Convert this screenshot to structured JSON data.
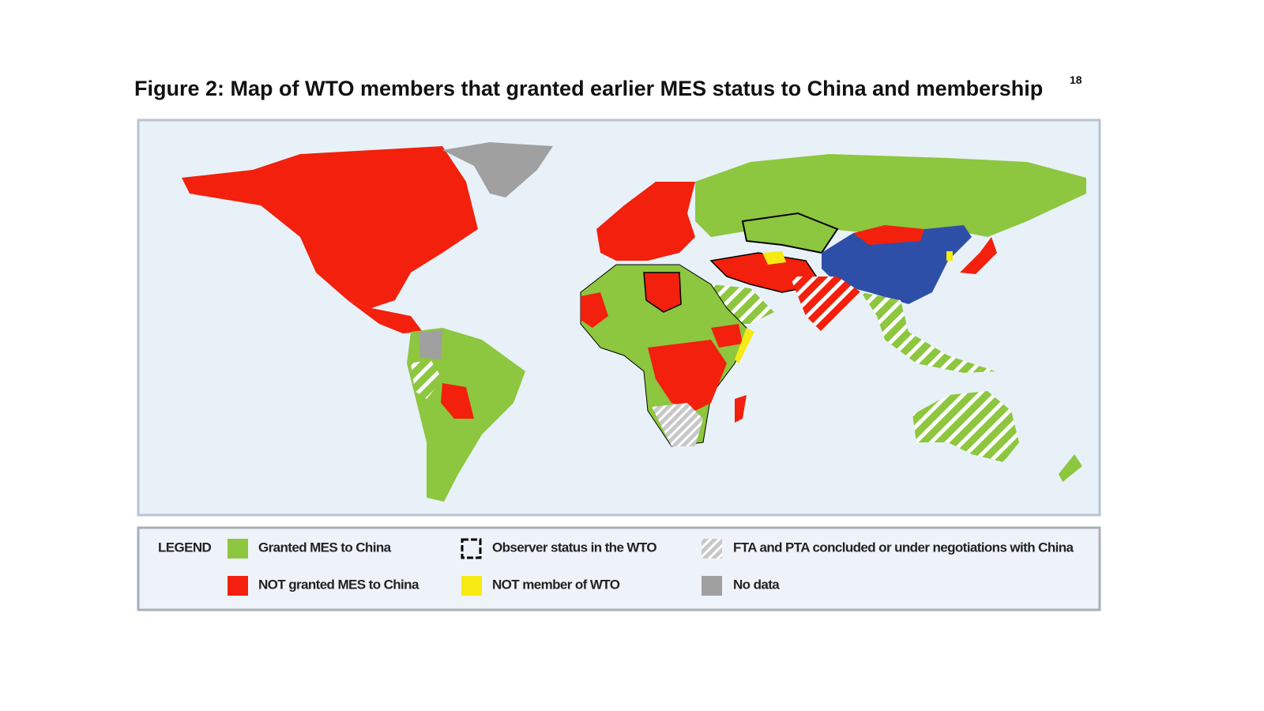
{
  "header": {
    "title": "Figure 2: Map of WTO members that granted earlier MES status to China and membership",
    "footnote": "18"
  },
  "legend": {
    "heading": "LEGEND",
    "items": [
      {
        "label": "Granted MES to China"
      },
      {
        "label": "Observer status in the WTO"
      },
      {
        "label": "FTA and PTA concluded or under negotiations with China"
      },
      {
        "label": "NOT granted MES to China"
      },
      {
        "label": "NOT member of WTO"
      },
      {
        "label": "No data"
      }
    ]
  }
}
